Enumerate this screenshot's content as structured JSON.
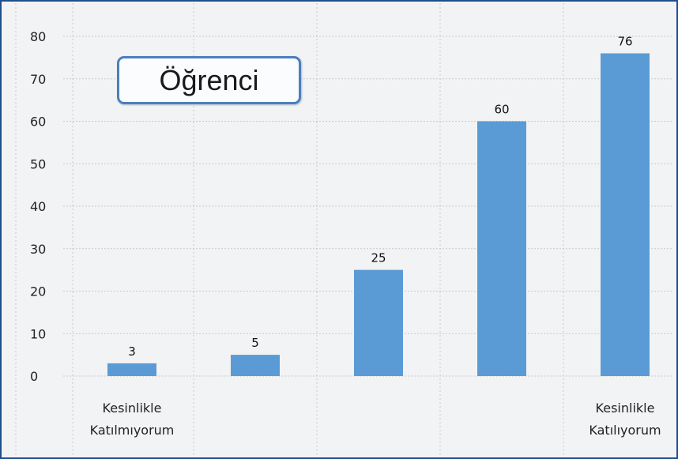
{
  "chart_data": {
    "type": "bar",
    "title": "",
    "annotation": "Öğrenci",
    "categories": [
      "Kesinlikle Katılmıyorum",
      "",
      "",
      "",
      "Kesinlikle Katılıyorum"
    ],
    "category_lines": [
      [
        "Kesinlikle",
        "Katılmıyorum"
      ],
      [],
      [],
      [],
      [
        "Kesinlikle",
        "Katılıyorum"
      ]
    ],
    "values": [
      3,
      5,
      25,
      60,
      76
    ],
    "ylim": [
      0,
      80
    ],
    "yticks": [
      0,
      10,
      20,
      30,
      40,
      50,
      60,
      70,
      80
    ],
    "xlabel": "",
    "ylabel": "",
    "grid": true,
    "colors": {
      "bar": "#5b9bd5",
      "grid": "#c9c9c9",
      "border": "#1e4f8f"
    }
  }
}
